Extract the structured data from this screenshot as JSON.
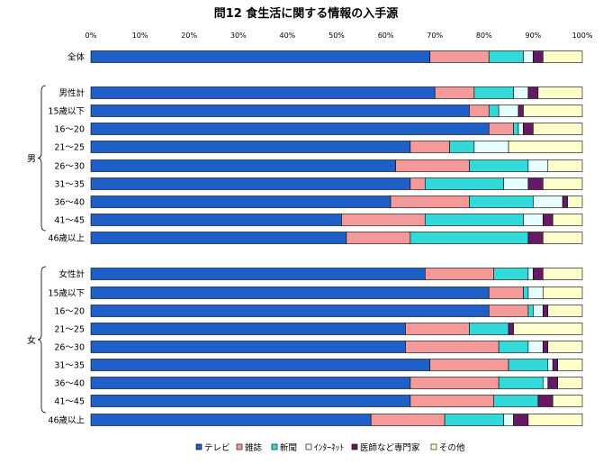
{
  "chart_data": {
    "type": "bar",
    "orientation": "horizontal",
    "stacked": true,
    "title": "問12 食生活に関する情報の入手源",
    "x_ticks": [
      "0%",
      "10%",
      "20%",
      "30%",
      "40%",
      "50%",
      "60%",
      "70%",
      "80%",
      "90%",
      "100%"
    ],
    "xlim": [
      0,
      100
    ],
    "grid": false,
    "legend_position": "bottom",
    "categories": [
      "全体",
      "男性計",
      "15歳以下",
      "16～20",
      "21～25",
      "26～30",
      "31～35",
      "36～40",
      "41～45",
      "46歳以上",
      "女性計",
      "15歳以下",
      "16～20",
      "21～25",
      "26～30",
      "31～35",
      "36～40",
      "41～45",
      "46歳以上"
    ],
    "groups": [
      {
        "label": "男",
        "from": 1,
        "to": 9
      },
      {
        "label": "女",
        "from": 10,
        "to": 18
      }
    ],
    "series": [
      {
        "name": "テレビ",
        "color": "#1f5fc8",
        "values": [
          69,
          70,
          77,
          81,
          65,
          62,
          65,
          61,
          51,
          52,
          68,
          81,
          81,
          64,
          64,
          69,
          65,
          65,
          57
        ]
      },
      {
        "name": "雑誌",
        "color": "#f49a9a",
        "values": [
          12,
          8,
          4,
          5,
          8,
          15,
          3,
          16,
          17,
          13,
          14,
          7,
          8,
          13,
          19,
          16,
          18,
          17,
          15
        ]
      },
      {
        "name": "新聞",
        "color": "#33d9d9",
        "values": [
          7,
          8,
          2,
          1,
          5,
          12,
          16,
          13,
          20,
          24,
          7,
          1,
          1,
          8,
          6,
          8,
          9,
          9,
          12
        ]
      },
      {
        "name": "ｲﾝﾀｰﾈｯﾄ",
        "color": "#e6ffff",
        "values": [
          2,
          3,
          4,
          1,
          7,
          4,
          5,
          6,
          4,
          0,
          1,
          3,
          2,
          0,
          3,
          1,
          1,
          0,
          2
        ]
      },
      {
        "name": "医師など専門家",
        "color": "#661a66",
        "values": [
          2,
          2,
          1,
          2,
          0,
          0,
          3,
          1,
          2,
          3,
          2,
          0,
          1,
          1,
          1,
          1,
          2,
          3,
          3
        ]
      },
      {
        "name": "その他",
        "color": "#ffffcc",
        "values": [
          8,
          9,
          12,
          10,
          15,
          7,
          8,
          3,
          6,
          8,
          8,
          8,
          7,
          14,
          7,
          5,
          5,
          6,
          11
        ]
      }
    ]
  }
}
